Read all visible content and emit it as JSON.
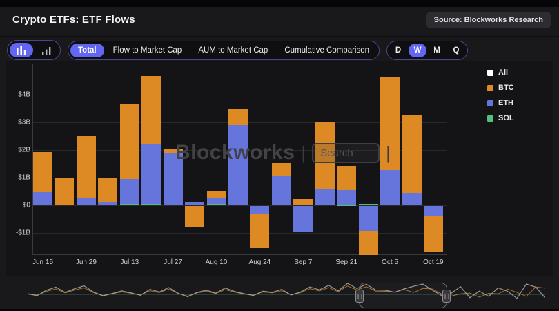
{
  "header": {
    "title": "Crypto ETFs: ETF Flows",
    "source": "Source: Blockworks Research"
  },
  "toolbar": {
    "chart_type_buttons": [
      {
        "icon": "column-chart",
        "selected": true
      },
      {
        "icon": "bar-growth",
        "selected": false
      }
    ],
    "tabs": [
      {
        "label": "Total",
        "selected": true
      },
      {
        "label": "Flow to Market Cap",
        "selected": false
      },
      {
        "label": "AUM to Market Cap",
        "selected": false
      },
      {
        "label": "Cumulative Comparison",
        "selected": false
      }
    ],
    "periods": [
      {
        "label": "D",
        "selected": false
      },
      {
        "label": "W",
        "selected": true
      },
      {
        "label": "M",
        "selected": false
      },
      {
        "label": "Q",
        "selected": false
      }
    ]
  },
  "legend": [
    {
      "label": "All",
      "color": "#ffffff"
    },
    {
      "label": "BTC",
      "color": "#dd8a24"
    },
    {
      "label": "ETH",
      "color": "#6575dc"
    },
    {
      "label": "SOL",
      "color": "#52bf7d"
    }
  ],
  "watermark": {
    "brand": "Blockworks",
    "search": "Search"
  },
  "colors": {
    "accent": "#6366f1",
    "panel": "#141416",
    "grid": "#29292c"
  },
  "chart_data": {
    "type": "bar",
    "stacked": true,
    "unit": "USD billions",
    "title": "Crypto ETFs: ETF Flows (weekly)",
    "categories": [
      "Jun 15",
      "Jun 22",
      "Jun 29",
      "Jul 6",
      "Jul 13",
      "Jul 20",
      "Jul 27",
      "Aug 3",
      "Aug 10",
      "Aug 17",
      "Aug 24",
      "Aug 31",
      "Sep 7",
      "Sep 14",
      "Sep 21",
      "Sep 28",
      "Oct 5",
      "Oct 12",
      "Oct 19"
    ],
    "x_tick_labels": [
      "Jun 15",
      "Jun 29",
      "Jul 13",
      "Jul 27",
      "Aug 10",
      "Aug 24",
      "Sep 7",
      "Sep 21",
      "Oct 5",
      "Oct 19"
    ],
    "series": [
      {
        "name": "SOL",
        "color": "#52bf7d",
        "values": [
          0,
          0,
          0,
          0,
          0.04,
          0.04,
          0.03,
          0,
          0.04,
          0.03,
          0,
          0.03,
          0,
          0,
          0.02,
          0.04,
          0,
          0,
          0
        ]
      },
      {
        "name": "ETH",
        "color": "#6575dc",
        "values": [
          0.48,
          0,
          0.25,
          0.12,
          0.9,
          2.16,
          1.85,
          0.13,
          0.24,
          2.87,
          -0.3,
          1.02,
          -0.95,
          0.6,
          0.53,
          -0.9,
          1.28,
          0.45,
          -0.35
        ]
      },
      {
        "name": "BTC",
        "color": "#dd8a24",
        "values": [
          1.45,
          1.0,
          2.25,
          0.88,
          2.73,
          2.48,
          0.15,
          -0.77,
          0.22,
          0.58,
          -1.22,
          0.48,
          0.22,
          2.4,
          0.88,
          -0.88,
          3.37,
          2.83,
          -1.3
        ]
      }
    ],
    "y_ticks": [
      {
        "label": "$4B",
        "value": 4
      },
      {
        "label": "$3B",
        "value": 3
      },
      {
        "label": "$2B",
        "value": 2
      },
      {
        "label": "$1B",
        "value": 1
      },
      {
        "label": "$0",
        "value": 0
      },
      {
        "label": "-$1B",
        "value": -1
      }
    ],
    "ylim": [
      -1.78,
      5.2
    ],
    "grid": true,
    "legend_position": "right"
  },
  "navigator": {
    "all": [
      0.3,
      -0.6,
      1.9,
      3.3,
      0.9,
      2.6,
      3.9,
      1.1,
      -0.7,
      0.4,
      1.6,
      0.7,
      -0.4,
      2.3,
      1.1,
      3.1,
      0.5,
      -1.1,
      0.9,
      1.9,
      0.6,
      2.9,
      1.3,
      0.3,
      -0.5,
      1.5,
      0.9,
      2.3,
      -0.3,
      1.1,
      3.4,
      2.1,
      4.1,
      1.6,
      5.0,
      2.7,
      4.6,
      2.0,
      1.9,
      1.0,
      2.5,
      3.7,
      4.7,
      2.0,
      -0.6,
      0.5,
      3.5,
      -1.5,
      1.5,
      -0.9,
      3.0,
      1.4,
      -1.8,
      4.7,
      3.3,
      -1.6
    ],
    "btc": [
      0.2,
      -0.4,
      1.4,
      2.5,
      0.7,
      2.0,
      3.0,
      0.8,
      -0.5,
      0.3,
      1.2,
      0.5,
      -0.3,
      1.7,
      0.8,
      2.4,
      0.4,
      -0.8,
      0.7,
      1.4,
      0.4,
      2.2,
      1.0,
      0.2,
      -0.4,
      1.1,
      0.7,
      1.7,
      -0.2,
      0.8,
      2.6,
      1.6,
      3.1,
      1.2,
      3.8,
      2.0,
      3.5,
      1.5,
      1.45,
      1.0,
      2.25,
      0.88,
      2.73,
      2.48,
      0.15,
      -0.77,
      0.22,
      0.58,
      -1.22,
      0.48,
      0.22,
      2.4,
      0.88,
      -0.88,
      3.37,
      2.83
    ],
    "sol_flat": 0.05
  }
}
